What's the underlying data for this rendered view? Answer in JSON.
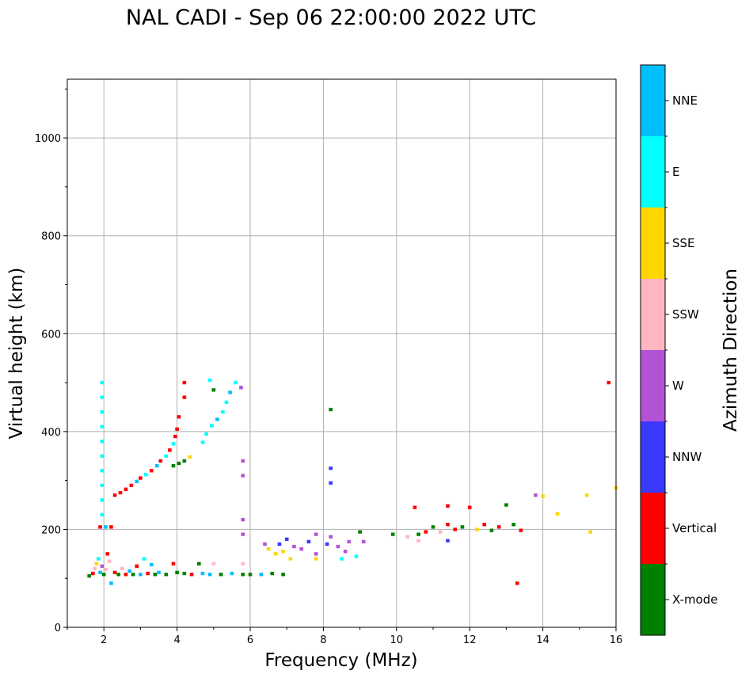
{
  "chart_data": {
    "type": "scatter",
    "title": "NAL CADI - Sep 06 22:00:00 2022 UTC",
    "xlabel": "Frequency (MHz)",
    "ylabel": "Virtual height (km)",
    "xlim": [
      1,
      16
    ],
    "ylim": [
      0,
      1120
    ],
    "xticks": [
      2,
      4,
      6,
      8,
      10,
      12,
      14,
      16
    ],
    "yticks": [
      0,
      200,
      400,
      600,
      800,
      1000
    ],
    "grid": true,
    "colorbar": {
      "label": "Azimuth Direction",
      "categories": [
        {
          "name": "X-mode",
          "color": "#008000"
        },
        {
          "name": "Vertical",
          "color": "#ff0000"
        },
        {
          "name": "NNW",
          "color": "#3a3aff"
        },
        {
          "name": "W",
          "color": "#b452d6"
        },
        {
          "name": "SSW",
          "color": "#ffb6c1"
        },
        {
          "name": "SSE",
          "color": "#ffd700"
        },
        {
          "name": "E",
          "color": "#00ffff"
        },
        {
          "name": "NNE",
          "color": "#00bfff"
        }
      ]
    },
    "points": [
      [
        1.6,
        105,
        "X-mode"
      ],
      [
        1.7,
        110,
        "Vertical"
      ],
      [
        1.75,
        120,
        "SSW"
      ],
      [
        1.8,
        130,
        "SSE"
      ],
      [
        1.85,
        140,
        "E"
      ],
      [
        1.9,
        112,
        "NNE"
      ],
      [
        1.95,
        125,
        "W"
      ],
      [
        2.0,
        108,
        "X-mode"
      ],
      [
        2.05,
        118,
        "SSW"
      ],
      [
        2.1,
        150,
        "Vertical"
      ],
      [
        2.15,
        135,
        "SSW"
      ],
      [
        2.2,
        90,
        "NNE"
      ],
      [
        2.3,
        112,
        "Vertical"
      ],
      [
        2.4,
        108,
        "X-mode"
      ],
      [
        2.5,
        120,
        "SSW"
      ],
      [
        2.6,
        108,
        "Vertical"
      ],
      [
        2.7,
        115,
        "NNE"
      ],
      [
        2.8,
        108,
        "X-mode"
      ],
      [
        2.9,
        125,
        "Vertical"
      ],
      [
        3.0,
        108,
        "NNE"
      ],
      [
        3.1,
        140,
        "E"
      ],
      [
        3.2,
        110,
        "Vertical"
      ],
      [
        3.3,
        128,
        "NNE"
      ],
      [
        3.4,
        108,
        "X-mode"
      ],
      [
        3.5,
        112,
        "NNE"
      ],
      [
        3.7,
        108,
        "X-mode"
      ],
      [
        3.9,
        130,
        "Vertical"
      ],
      [
        4.0,
        112,
        "X-mode"
      ],
      [
        4.2,
        110,
        "X-mode"
      ],
      [
        4.4,
        108,
        "Vertical"
      ],
      [
        4.6,
        130,
        "X-mode"
      ],
      [
        4.7,
        110,
        "NNE"
      ],
      [
        4.9,
        108,
        "NNE"
      ],
      [
        5.0,
        130,
        "SSW"
      ],
      [
        5.2,
        108,
        "X-mode"
      ],
      [
        5.5,
        110,
        "NNE"
      ],
      [
        5.8,
        108,
        "X-mode"
      ],
      [
        6.0,
        108,
        "X-mode"
      ],
      [
        6.3,
        108,
        "NNE"
      ],
      [
        6.6,
        110,
        "X-mode"
      ],
      [
        6.9,
        108,
        "X-mode"
      ],
      [
        1.95,
        500,
        "E"
      ],
      [
        1.95,
        470,
        "E"
      ],
      [
        1.95,
        440,
        "E"
      ],
      [
        1.95,
        410,
        "E"
      ],
      [
        1.95,
        380,
        "E"
      ],
      [
        1.95,
        350,
        "E"
      ],
      [
        1.95,
        320,
        "E"
      ],
      [
        1.95,
        290,
        "E"
      ],
      [
        1.95,
        260,
        "E"
      ],
      [
        1.95,
        230,
        "E"
      ],
      [
        1.9,
        205,
        "Vertical"
      ],
      [
        2.05,
        205,
        "NNE"
      ],
      [
        2.2,
        205,
        "Vertical"
      ],
      [
        2.3,
        270,
        "Vertical"
      ],
      [
        2.45,
        275,
        "Vertical"
      ],
      [
        2.6,
        282,
        "Vertical"
      ],
      [
        2.75,
        290,
        "Vertical"
      ],
      [
        2.9,
        298,
        "NNE"
      ],
      [
        3.0,
        305,
        "Vertical"
      ],
      [
        3.15,
        312,
        "E"
      ],
      [
        3.3,
        320,
        "Vertical"
      ],
      [
        3.45,
        330,
        "NNE"
      ],
      [
        3.55,
        340,
        "Vertical"
      ],
      [
        3.7,
        350,
        "E"
      ],
      [
        3.8,
        362,
        "Vertical"
      ],
      [
        3.9,
        375,
        "E"
      ],
      [
        3.95,
        390,
        "Vertical"
      ],
      [
        4.0,
        405,
        "Vertical"
      ],
      [
        4.05,
        430,
        "Vertical"
      ],
      [
        4.2,
        470,
        "Vertical"
      ],
      [
        4.2,
        500,
        "Vertical"
      ],
      [
        3.9,
        330,
        "X-mode"
      ],
      [
        4.05,
        335,
        "X-mode"
      ],
      [
        4.2,
        340,
        "X-mode"
      ],
      [
        4.35,
        348,
        "SSE"
      ],
      [
        4.7,
        378,
        "E"
      ],
      [
        4.8,
        395,
        "E"
      ],
      [
        4.95,
        412,
        "E"
      ],
      [
        5.1,
        425,
        "NNE"
      ],
      [
        5.25,
        440,
        "E"
      ],
      [
        5.35,
        460,
        "E"
      ],
      [
        5.45,
        480,
        "NNE"
      ],
      [
        5.6,
        500,
        "E"
      ],
      [
        5.0,
        485,
        "X-mode"
      ],
      [
        4.9,
        505,
        "E"
      ],
      [
        5.75,
        490,
        "W"
      ],
      [
        5.8,
        340,
        "W"
      ],
      [
        5.8,
        310,
        "W"
      ],
      [
        5.8,
        220,
        "W"
      ],
      [
        5.8,
        190,
        "W"
      ],
      [
        5.8,
        130,
        "SSW"
      ],
      [
        6.4,
        170,
        "W"
      ],
      [
        6.5,
        160,
        "SSE"
      ],
      [
        6.7,
        150,
        "SSE"
      ],
      [
        6.8,
        170,
        "NNW"
      ],
      [
        6.9,
        155,
        "SSE"
      ],
      [
        7.0,
        180,
        "NNW"
      ],
      [
        7.1,
        140,
        "SSE"
      ],
      [
        7.2,
        165,
        "W"
      ],
      [
        7.4,
        160,
        "W"
      ],
      [
        7.6,
        175,
        "NNW"
      ],
      [
        7.8,
        150,
        "W"
      ],
      [
        7.8,
        190,
        "W"
      ],
      [
        7.8,
        140,
        "SSE"
      ],
      [
        8.1,
        170,
        "NNW"
      ],
      [
        8.2,
        185,
        "W"
      ],
      [
        8.4,
        165,
        "W"
      ],
      [
        8.5,
        140,
        "E"
      ],
      [
        8.6,
        155,
        "W"
      ],
      [
        8.7,
        175,
        "W"
      ],
      [
        8.9,
        145,
        "E"
      ],
      [
        9.0,
        195,
        "X-mode"
      ],
      [
        9.1,
        175,
        "W"
      ],
      [
        8.2,
        445,
        "X-mode"
      ],
      [
        8.2,
        325,
        "NNW"
      ],
      [
        8.2,
        295,
        "NNW"
      ],
      [
        9.9,
        190,
        "X-mode"
      ],
      [
        10.3,
        185,
        "SSW"
      ],
      [
        10.5,
        245,
        "Vertical"
      ],
      [
        10.6,
        190,
        "X-mode"
      ],
      [
        10.8,
        195,
        "Vertical"
      ],
      [
        11.0,
        205,
        "X-mode"
      ],
      [
        11.2,
        195,
        "SSW"
      ],
      [
        11.4,
        210,
        "Vertical"
      ],
      [
        11.4,
        248,
        "Vertical"
      ],
      [
        11.6,
        200,
        "Vertical"
      ],
      [
        11.8,
        205,
        "X-mode"
      ],
      [
        12.0,
        245,
        "Vertical"
      ],
      [
        12.2,
        200,
        "SSE"
      ],
      [
        12.4,
        210,
        "Vertical"
      ],
      [
        12.6,
        198,
        "X-mode"
      ],
      [
        12.8,
        205,
        "Vertical"
      ],
      [
        13.0,
        250,
        "X-mode"
      ],
      [
        13.2,
        210,
        "X-mode"
      ],
      [
        13.4,
        198,
        "Vertical"
      ],
      [
        13.3,
        90,
        "Vertical"
      ],
      [
        13.8,
        270,
        "W"
      ],
      [
        14.0,
        268,
        "SSE"
      ],
      [
        14.4,
        232,
        "SSE"
      ],
      [
        15.2,
        270,
        "SSE"
      ],
      [
        15.3,
        195,
        "SSE"
      ],
      [
        15.8,
        500,
        "Vertical"
      ],
      [
        16.0,
        285,
        "SSE"
      ],
      [
        11.4,
        177,
        "NNW"
      ],
      [
        10.6,
        177,
        "SSW"
      ]
    ]
  }
}
